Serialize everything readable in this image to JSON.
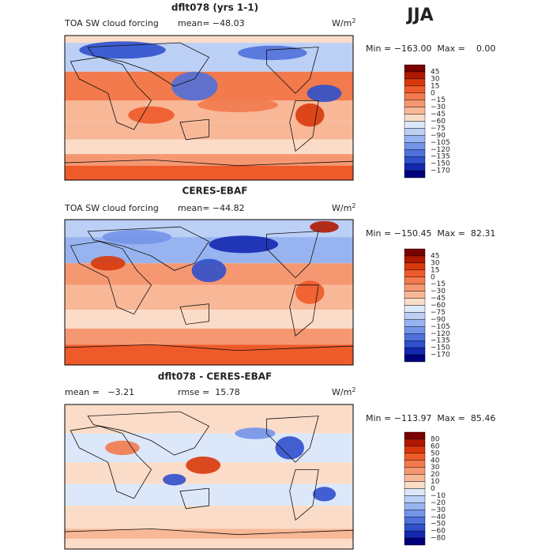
{
  "season": "JJA",
  "panels": [
    {
      "title": "dflt078 (yrs 1-1)",
      "variable": "TOA SW cloud forcing",
      "stats": [
        "mean= −48.03"
      ],
      "units": "W/m",
      "units_sup": "2",
      "range": "Min = −163.00  Max =    0.00",
      "levels": [
        "45",
        "30",
        "15",
        "0",
        "−15",
        "−30",
        "−45",
        "−60",
        "−75",
        "−90",
        "−105",
        "−120",
        "−135",
        "−150",
        "−170"
      ]
    },
    {
      "title": "CERES-EBAF",
      "variable": "TOA SW cloud forcing",
      "stats": [
        "mean= −44.82"
      ],
      "units": "W/m",
      "units_sup": "2",
      "range": "Min = −150.45  Max =  82.31",
      "levels": [
        "45",
        "30",
        "15",
        "0",
        "−15",
        "−30",
        "−45",
        "−60",
        "−75",
        "−90",
        "−105",
        "−120",
        "−135",
        "−150",
        "−170"
      ]
    },
    {
      "title": "dflt078 - CERES-EBAF",
      "variable": null,
      "stats": [
        "mean =   −3.21",
        "rmse =  15.78"
      ],
      "units": "W/m",
      "units_sup": "2",
      "range": "Min = −113.97  Max =  85.46",
      "levels": [
        "80",
        "60",
        "50",
        "40",
        "30",
        "20",
        "10",
        "0",
        "−10",
        "−20",
        "−30",
        "−40",
        "−50",
        "−60",
        "−80"
      ]
    }
  ]
}
